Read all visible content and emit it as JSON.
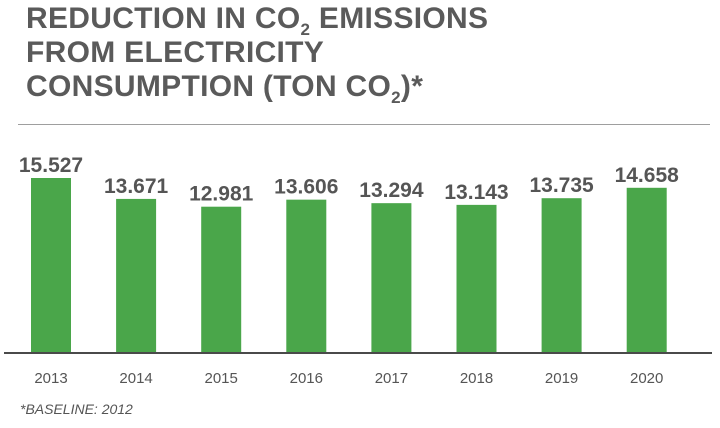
{
  "title": {
    "line1_a": "REDUCTION IN CO",
    "line1_sub": "2",
    "line1_b": " EMISSIONS",
    "line2": "FROM ELECTRICITY",
    "line3_a": "CONSUMPTION (TON CO",
    "line3_sub": "2",
    "line3_b": ")*"
  },
  "footnote": "*BASELINE: 2012",
  "colors": {
    "bar": "#4aa64a",
    "axis": "#4a4a4a",
    "text": "#555555"
  },
  "chart_data": {
    "type": "bar",
    "categories": [
      "2013",
      "2014",
      "2015",
      "2016",
      "2017",
      "2018",
      "2019",
      "2020"
    ],
    "values": [
      15.527,
      13.671,
      12.981,
      13.606,
      13.294,
      13.143,
      13.735,
      14.658
    ],
    "value_labels": [
      "15.527",
      "13.671",
      "12.981",
      "13.606",
      "13.294",
      "13.143",
      "13.735",
      "14.658"
    ],
    "title": "REDUCTION IN CO2 EMISSIONS FROM ELECTRICITY CONSUMPTION (TON CO2)*",
    "xlabel": "",
    "ylabel": "",
    "grid": false,
    "legend": "none"
  }
}
